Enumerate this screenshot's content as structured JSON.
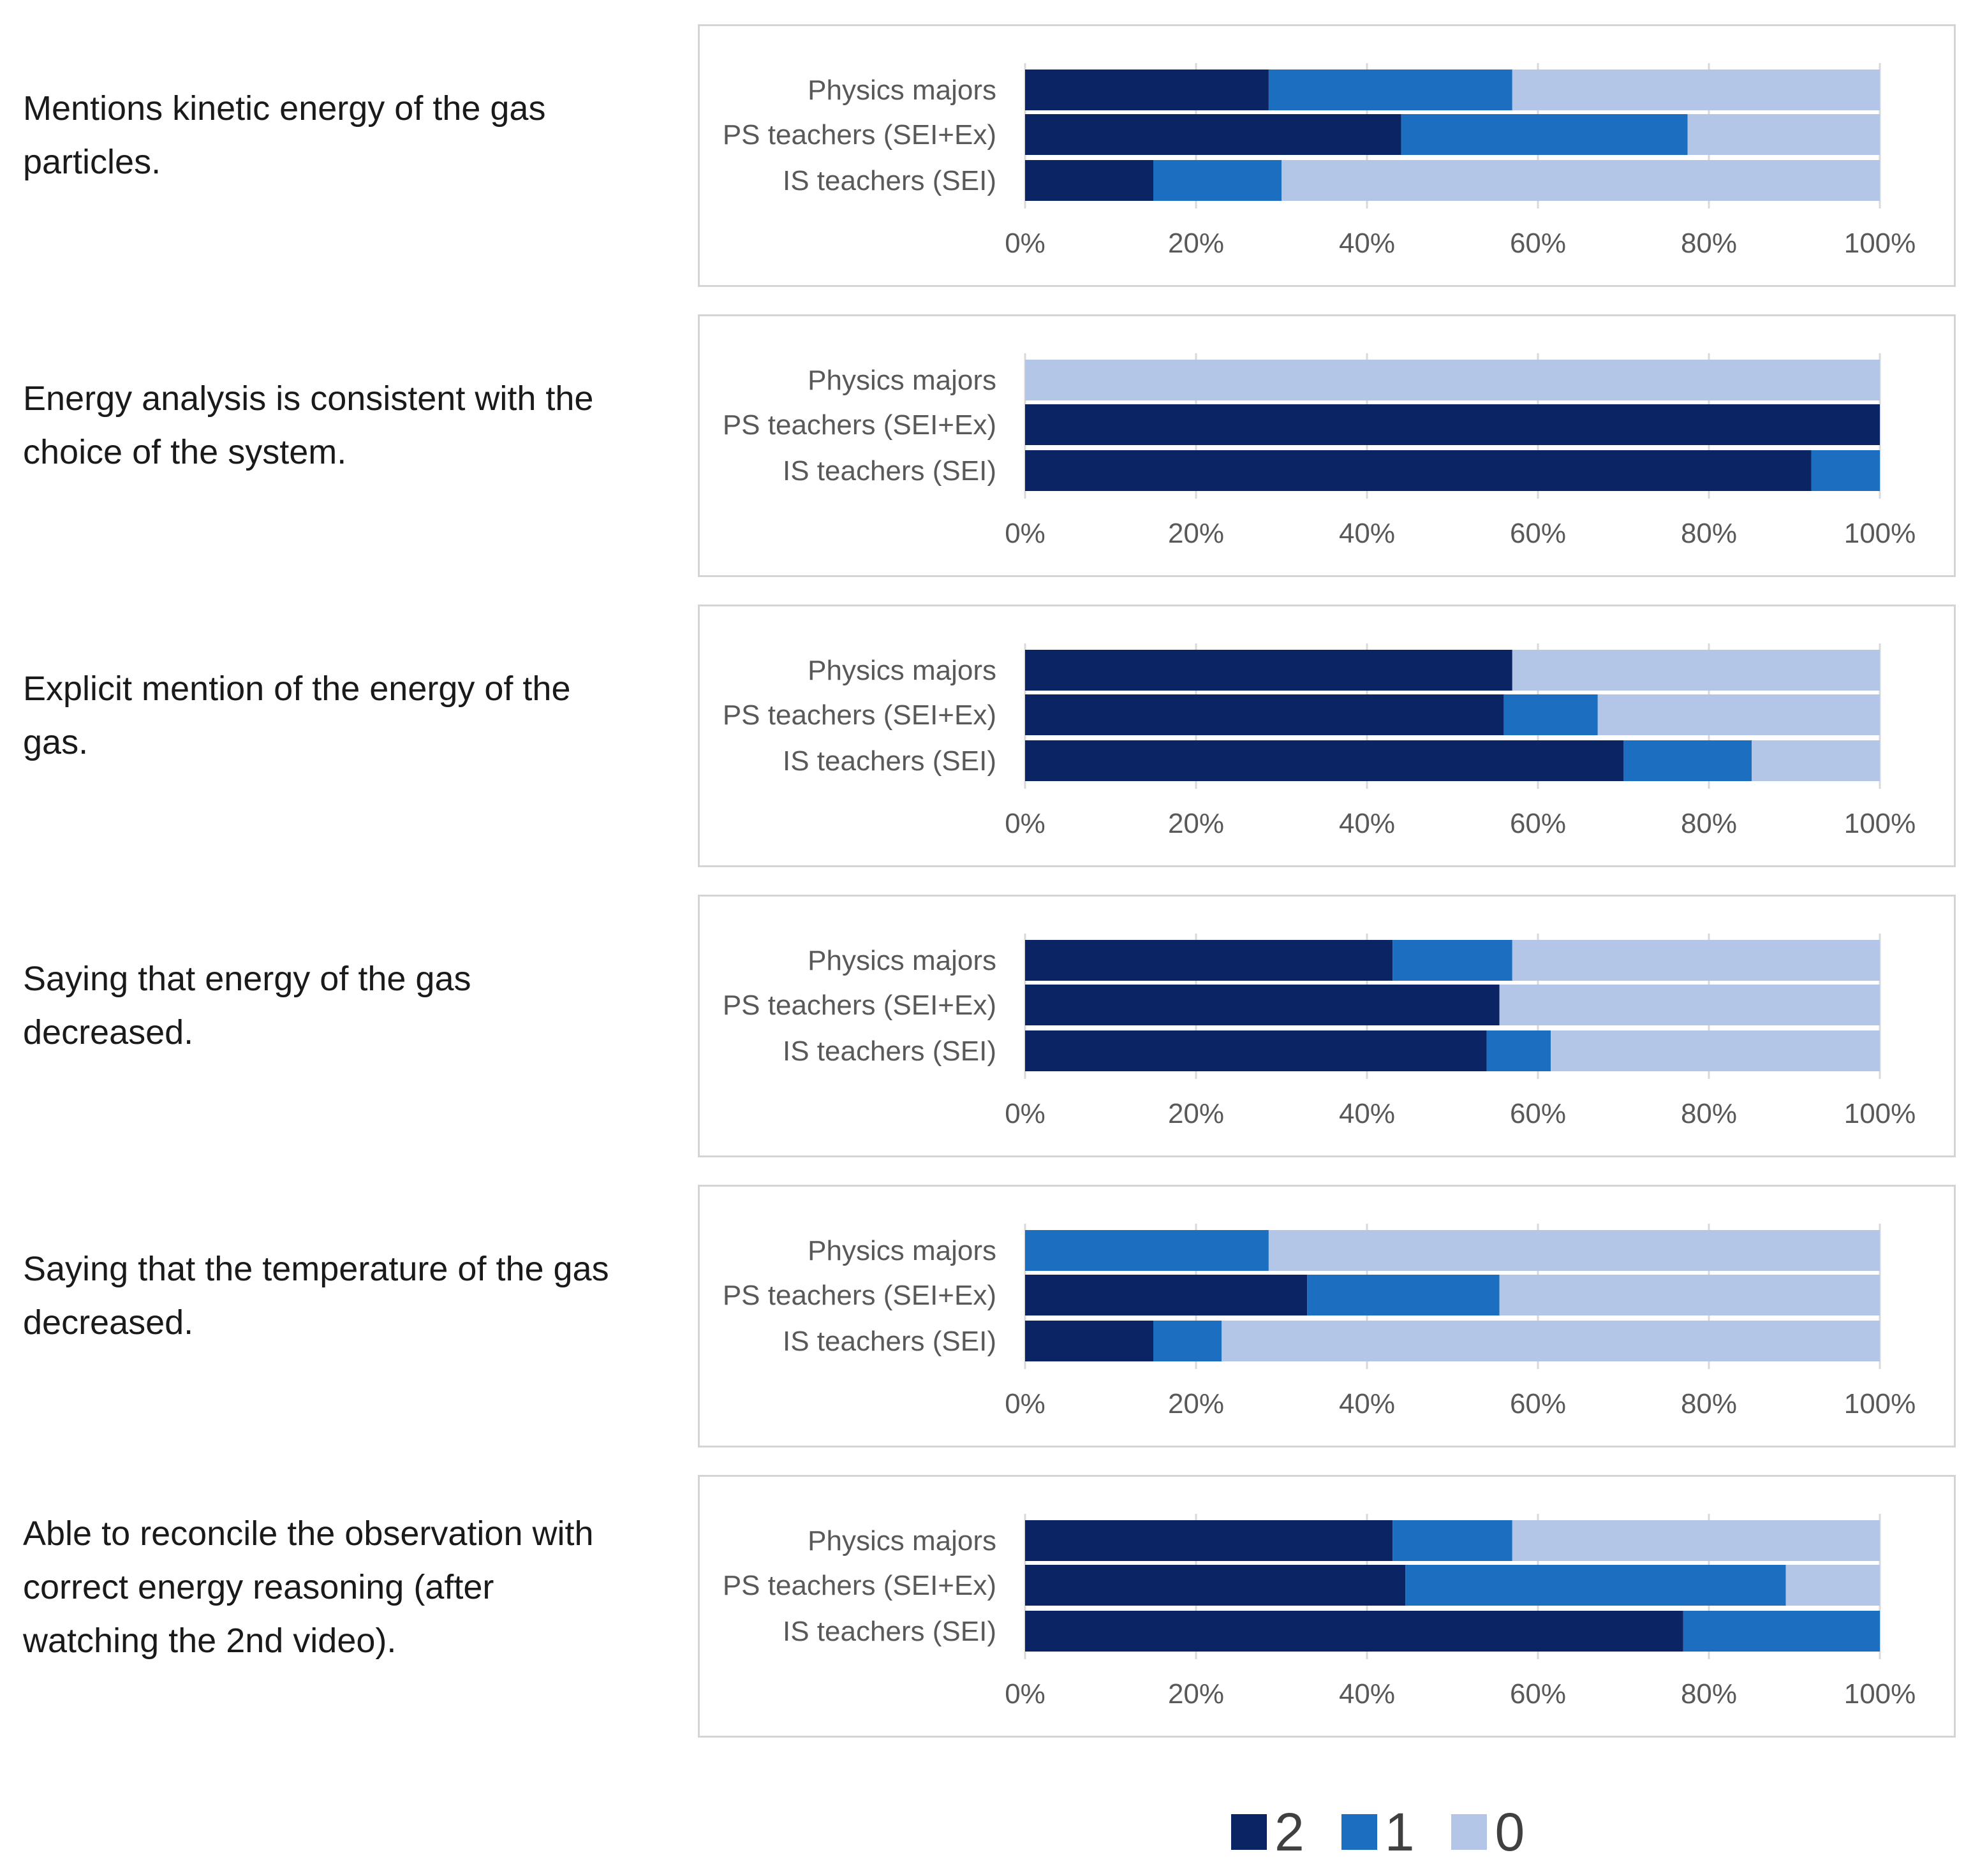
{
  "chart_data": {
    "type": "bar",
    "orientation": "horizontal",
    "stacked": true,
    "percent_stacked": true,
    "categories": [
      "Physics majors",
      "PS teachers (SEI+Ex)",
      "IS teachers (SEI)"
    ],
    "x_ticks": [
      "0%",
      "20%",
      "40%",
      "60%",
      "80%",
      "100%"
    ],
    "xlim": [
      0,
      100
    ],
    "grid": true,
    "legend": {
      "placement": "bottom",
      "entries": [
        {
          "label": "2",
          "color": "#0b2463"
        },
        {
          "label": "1",
          "color": "#1c6fc0"
        },
        {
          "label": "0",
          "color": "#b4c6e7"
        }
      ]
    },
    "panels": [
      {
        "question": "Mentions kinetic energy of the gas particles.",
        "series": [
          {
            "name": "2",
            "values": [
              28.5,
              44,
              15
            ]
          },
          {
            "name": "1",
            "values": [
              28.5,
              33.5,
              15
            ]
          },
          {
            "name": "0",
            "values": [
              43,
              22.5,
              70
            ]
          }
        ]
      },
      {
        "question": "Energy analysis is consistent with the choice of the system.",
        "series": [
          {
            "name": "2",
            "values": [
              0,
              100,
              92
            ]
          },
          {
            "name": "1",
            "values": [
              0,
              0,
              8
            ]
          },
          {
            "name": "0",
            "values": [
              100,
              0,
              0
            ]
          }
        ]
      },
      {
        "question": "Explicit mention of the energy of the gas.",
        "series": [
          {
            "name": "2",
            "values": [
              57,
              56,
              70
            ]
          },
          {
            "name": "1",
            "values": [
              0,
              11,
              15
            ]
          },
          {
            "name": "0",
            "values": [
              43,
              33,
              15
            ]
          }
        ]
      },
      {
        "question": "Saying that energy of the gas decreased.",
        "series": [
          {
            "name": "2",
            "values": [
              43,
              55.5,
              54
            ]
          },
          {
            "name": "1",
            "values": [
              14,
              0,
              7.5
            ]
          },
          {
            "name": "0",
            "values": [
              43,
              44.5,
              38.5
            ]
          }
        ]
      },
      {
        "question": "Saying that the temperature of the gas decreased.",
        "series": [
          {
            "name": "2",
            "values": [
              0,
              33,
              15
            ]
          },
          {
            "name": "1",
            "values": [
              28.5,
              22.5,
              8
            ]
          },
          {
            "name": "0",
            "values": [
              71.5,
              44.5,
              77
            ]
          }
        ]
      },
      {
        "question": "Able to reconcile the observation with correct energy reasoning (after watching the 2nd video).",
        "series": [
          {
            "name": "2",
            "values": [
              43,
              44.5,
              77
            ]
          },
          {
            "name": "1",
            "values": [
              14,
              44.5,
              23
            ]
          },
          {
            "name": "0",
            "values": [
              43,
              11,
              0
            ]
          }
        ]
      }
    ]
  }
}
